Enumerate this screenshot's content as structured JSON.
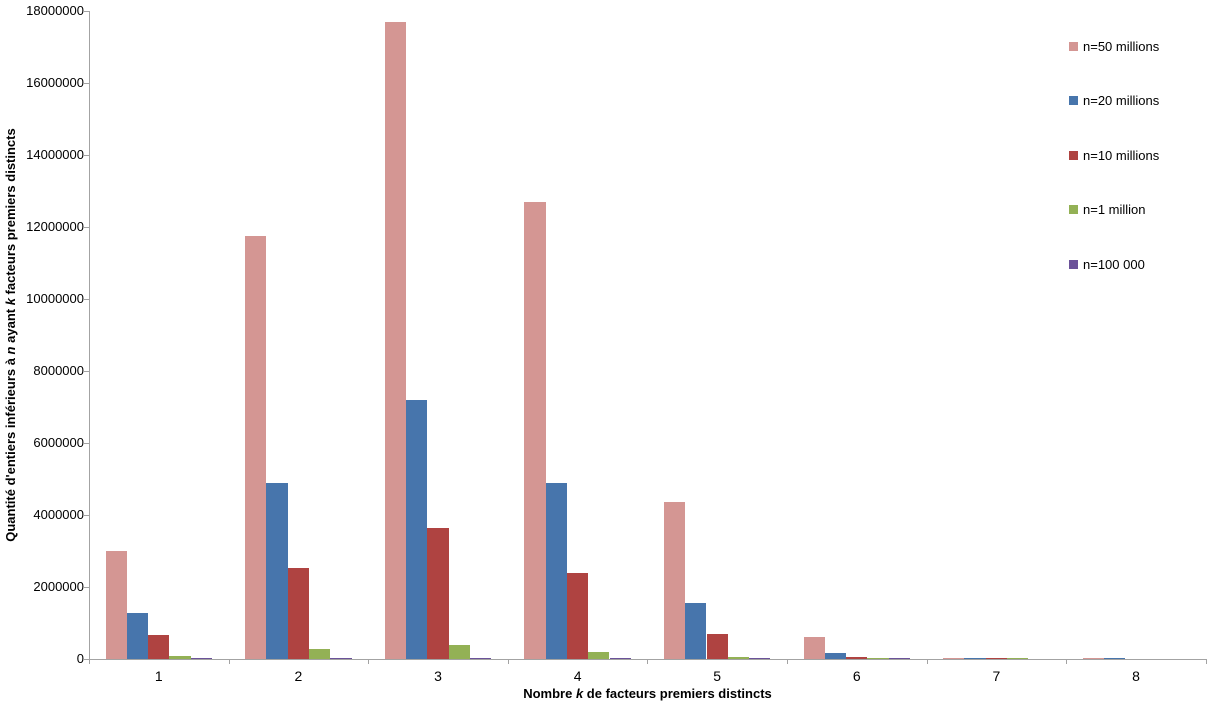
{
  "chart_data": {
    "type": "bar",
    "title": "",
    "xlabel": "Nombre k de facteurs premiers distincts",
    "xlabel_parts": [
      "Nombre ",
      "k",
      " de facteurs premiers distincts"
    ],
    "ylabel": "Quantité d'entiers inférieurs à n ayant k facteurs premiers distincts",
    "ylabel_parts": [
      "Quantité d'entiers inférieurs à ",
      "n",
      " ayant ",
      "k",
      " facteurs premiers distincts"
    ],
    "categories": [
      "1",
      "2",
      "3",
      "4",
      "5",
      "6",
      "7",
      "8"
    ],
    "series": [
      {
        "name": "n=50 millions",
        "color": "#D49693",
        "values": [
          3005000,
          11750000,
          17700000,
          12700000,
          4350000,
          610000,
          20000,
          40
        ]
      },
      {
        "name": "n=20 millions",
        "color": "#4775AC",
        "values": [
          1280000,
          4900000,
          7200000,
          4900000,
          1550000,
          170000,
          4000,
          3
        ]
      },
      {
        "name": "n=10 millions",
        "color": "#AF4341",
        "values": [
          665000,
          2530000,
          3650000,
          2390000,
          700000,
          60000,
          2400,
          0
        ]
      },
      {
        "name": "n=1 million",
        "color": "#93B155",
        "values": [
          78734,
          288726,
          379720,
          208034,
          42492,
          2285,
          8,
          0
        ]
      },
      {
        "name": "n=100 000",
        "color": "#6B5299",
        "values": [
          9700,
          33759,
          41243,
          14061,
          1221,
          15,
          0,
          0
        ]
      }
    ],
    "ylim": [
      0,
      18000000
    ],
    "ytick_interval": 2000000,
    "yticks": [
      "0",
      "2000000",
      "4000000",
      "6000000",
      "8000000",
      "10000000",
      "12000000",
      "14000000",
      "16000000",
      "18000000"
    ],
    "grid": false,
    "legend_position": "right-overlay"
  }
}
